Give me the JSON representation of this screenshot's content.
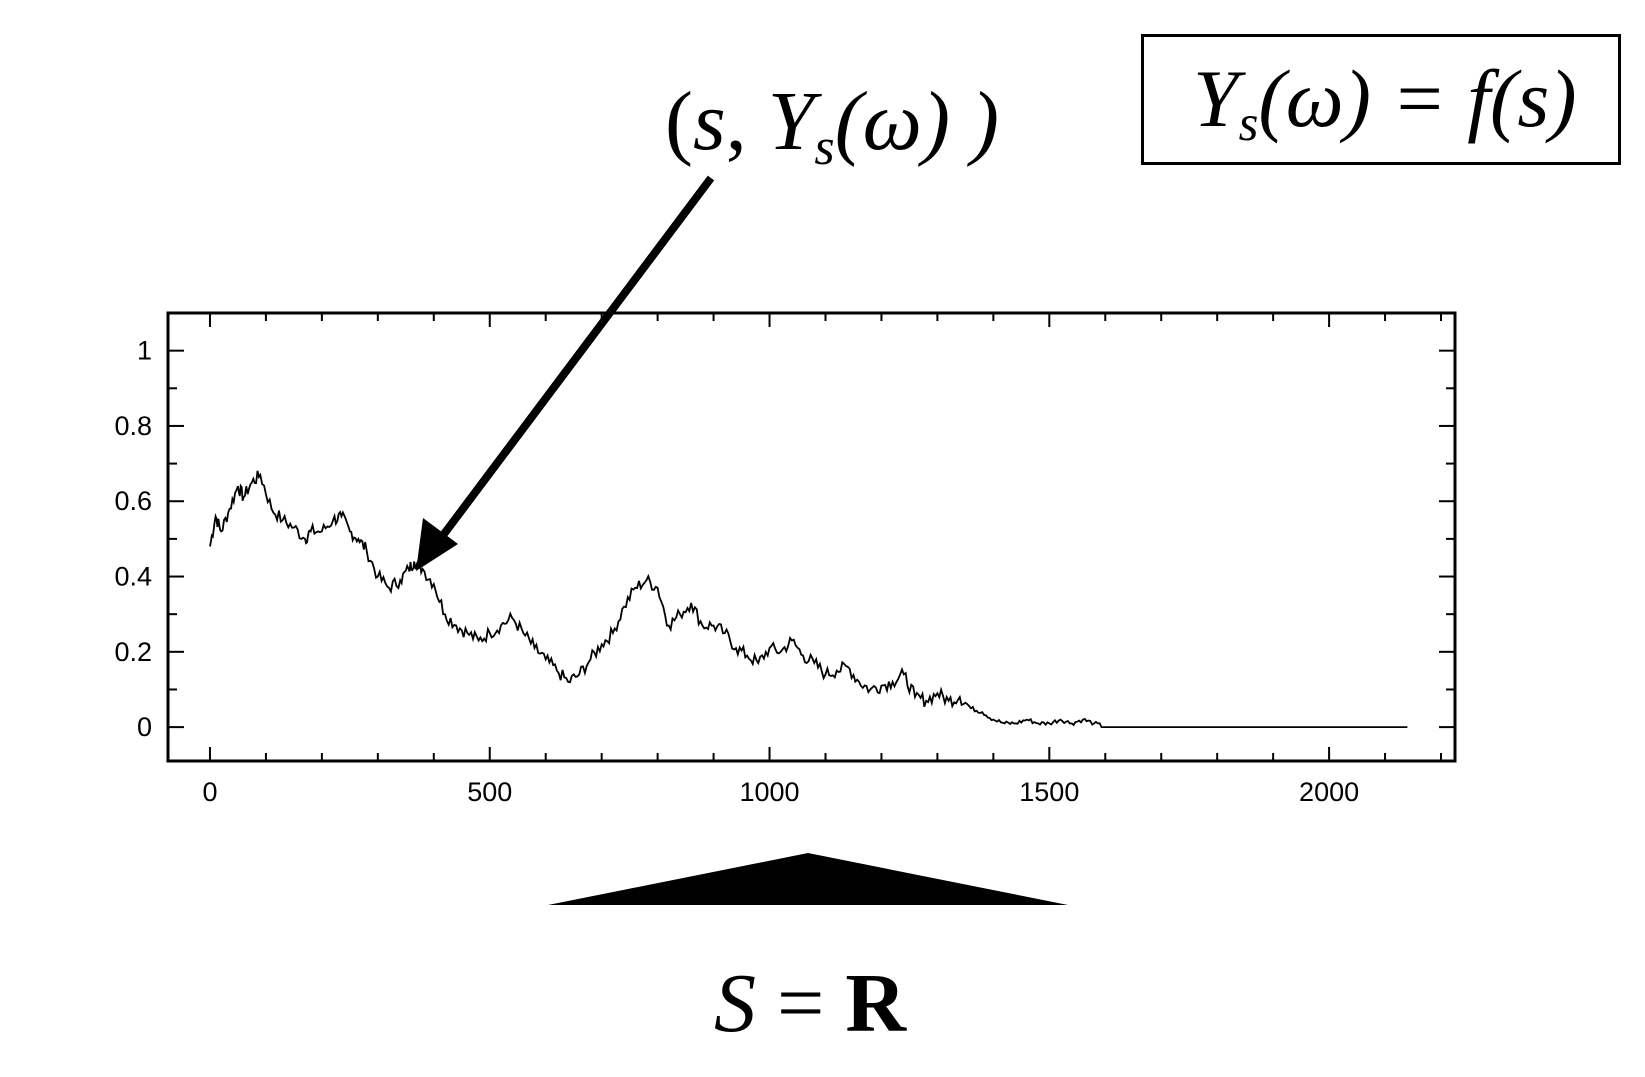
{
  "annotations": {
    "point_label": {
      "open": "(",
      "s": "s",
      "comma": ", ",
      "Y": "Y",
      "sub_s": "s",
      "omega_part": "(ω) )"
    },
    "definition_box": {
      "Y": "Y",
      "sub_s": "s",
      "omega_eq": "(ω) = ",
      "f": "f",
      "arg": "(s)"
    },
    "space_label": {
      "S": "S",
      "eq": " = ",
      "R": "R"
    }
  },
  "chart_data": {
    "type": "line",
    "title": "",
    "xlabel": "",
    "ylabel": "",
    "xlim": [
      -75,
      2225
    ],
    "ylim": [
      -0.09,
      1.1
    ],
    "xticks": [
      0,
      500,
      1000,
      1500,
      2000
    ],
    "yticks": [
      0,
      0.2,
      0.4,
      0.6,
      0.8,
      1
    ],
    "xtick_labels": [
      "0",
      "500",
      "1000",
      "1500",
      "2000"
    ],
    "ytick_labels": [
      "0",
      "0.2",
      "0.4",
      "0.6",
      "0.8",
      "1"
    ],
    "grid": false,
    "series": [
      {
        "x": [
          0,
          10,
          20,
          35,
          50,
          60,
          75,
          90,
          110,
          130,
          150,
          170,
          180,
          200,
          220,
          235,
          250,
          265,
          280,
          300,
          320,
          340,
          355,
          365,
          380,
          400,
          420,
          440,
          460,
          480,
          500,
          520,
          540,
          560,
          580,
          600,
          620,
          640,
          660,
          680,
          700,
          720,
          740,
          760,
          780,
          800,
          820,
          840,
          860,
          880,
          900,
          920,
          940,
          960,
          980,
          1000,
          1020,
          1040,
          1060,
          1080,
          1100,
          1120,
          1140,
          1160,
          1180,
          1200,
          1220,
          1240,
          1260,
          1280,
          1300,
          1320,
          1340,
          1360,
          1380,
          1400,
          1420,
          1440,
          1460,
          1480,
          1500,
          1520,
          1540,
          1560,
          1580,
          1600,
          1700,
          1800,
          1900,
          2000,
          2100,
          2140
        ],
        "y": [
          0.48,
          0.56,
          0.52,
          0.58,
          0.64,
          0.61,
          0.65,
          0.67,
          0.58,
          0.55,
          0.53,
          0.5,
          0.52,
          0.52,
          0.55,
          0.56,
          0.52,
          0.5,
          0.47,
          0.4,
          0.37,
          0.39,
          0.42,
          0.44,
          0.42,
          0.38,
          0.3,
          0.27,
          0.25,
          0.23,
          0.25,
          0.27,
          0.29,
          0.25,
          0.21,
          0.18,
          0.15,
          0.12,
          0.14,
          0.18,
          0.22,
          0.25,
          0.32,
          0.37,
          0.39,
          0.37,
          0.27,
          0.3,
          0.33,
          0.27,
          0.27,
          0.25,
          0.21,
          0.19,
          0.17,
          0.21,
          0.2,
          0.23,
          0.19,
          0.17,
          0.14,
          0.15,
          0.16,
          0.12,
          0.1,
          0.11,
          0.12,
          0.14,
          0.08,
          0.07,
          0.09,
          0.07,
          0.08,
          0.05,
          0.04,
          0.02,
          0.01,
          0.01,
          0.02,
          0.01,
          0.01,
          0.02,
          0.01,
          0.02,
          0.01,
          0.0,
          0.0,
          0.0,
          0.0,
          0.0,
          0.0,
          0.0
        ]
      }
    ]
  }
}
